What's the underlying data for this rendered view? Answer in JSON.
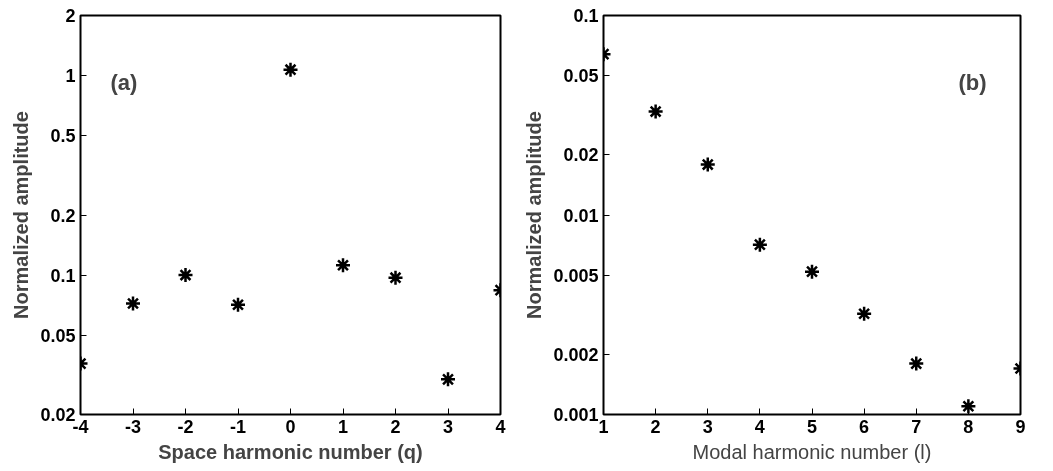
{
  "chart_data": [
    {
      "type": "scatter",
      "xlabel": "Space harmonic number (q)",
      "ylabel": "Normalized amplitude",
      "annotations": [
        "(a)"
      ],
      "x": [
        -4,
        -3,
        -2,
        -1,
        0,
        1,
        2,
        3,
        4
      ],
      "series": [
        {
          "color": "#000000",
          "values": [
            0.036,
            0.072,
            0.1,
            0.071,
            1.07,
            0.112,
            0.097,
            0.03,
            0.084
          ]
        }
      ],
      "xlim": [
        -4,
        4
      ],
      "xticks": [
        -4,
        -3,
        -2,
        -1,
        0,
        1,
        2,
        3,
        4
      ],
      "ylim": [
        0.02,
        2
      ],
      "yticks": [
        0.02,
        0.05,
        0.1,
        0.2,
        0.5,
        1,
        2
      ],
      "log": "y",
      "grid": false,
      "marker": "cross"
    },
    {
      "type": "scatter",
      "xlabel": "Modal harmonic number (l)",
      "ylabel": "Normalized amplitude",
      "annotations": [
        "(b)"
      ],
      "x": [
        1,
        2,
        3,
        4,
        5,
        6,
        7,
        8,
        9
      ],
      "series": [
        {
          "color": "#000000",
          "values": [
            0.064,
            0.033,
            0.0179,
            0.0071,
            0.0052,
            0.0032,
            0.0018,
            0.0011,
            0.0017
          ]
        }
      ],
      "xlim": [
        1,
        9
      ],
      "xticks": [
        1,
        2,
        3,
        4,
        5,
        6,
        7,
        8,
        9
      ],
      "ylim": [
        0.001,
        0.1
      ],
      "yticks": [
        0.001,
        0.002,
        0.005,
        0.01,
        0.02,
        0.05,
        0.1
      ],
      "log": "y",
      "grid": false,
      "marker": "cross"
    }
  ]
}
